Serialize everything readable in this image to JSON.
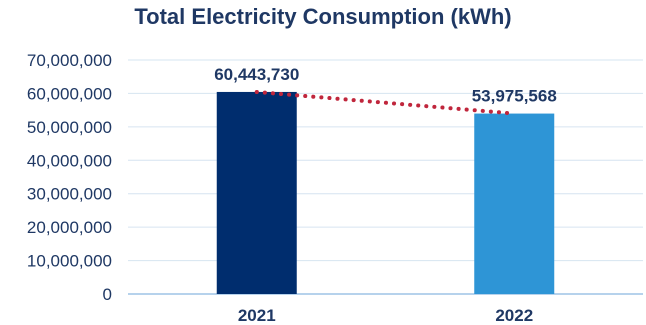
{
  "chart_data": {
    "type": "bar",
    "title": "Total Electricity Consumption (kWh)",
    "categories": [
      "2021",
      "2022"
    ],
    "values": [
      60443730,
      53975568
    ],
    "value_labels": [
      "60,443,730",
      "53,975,568"
    ],
    "ylim": [
      0,
      70000000
    ],
    "yticks": [
      0,
      10000000,
      20000000,
      30000000,
      40000000,
      50000000,
      60000000,
      70000000
    ],
    "ytick_labels": [
      "0",
      "10,000,000",
      "20,000,000",
      "30,000,000",
      "40,000,000",
      "50,000,000",
      "60,000,000",
      "70,000,000"
    ],
    "grid": true,
    "bar_colors": [
      "#002d6e",
      "#2e95d6"
    ],
    "trend_line": {
      "style": "dotted",
      "color": "#c0263c"
    },
    "grid_color": "#d6e4f0",
    "axis_color": "#9dc3e6"
  }
}
